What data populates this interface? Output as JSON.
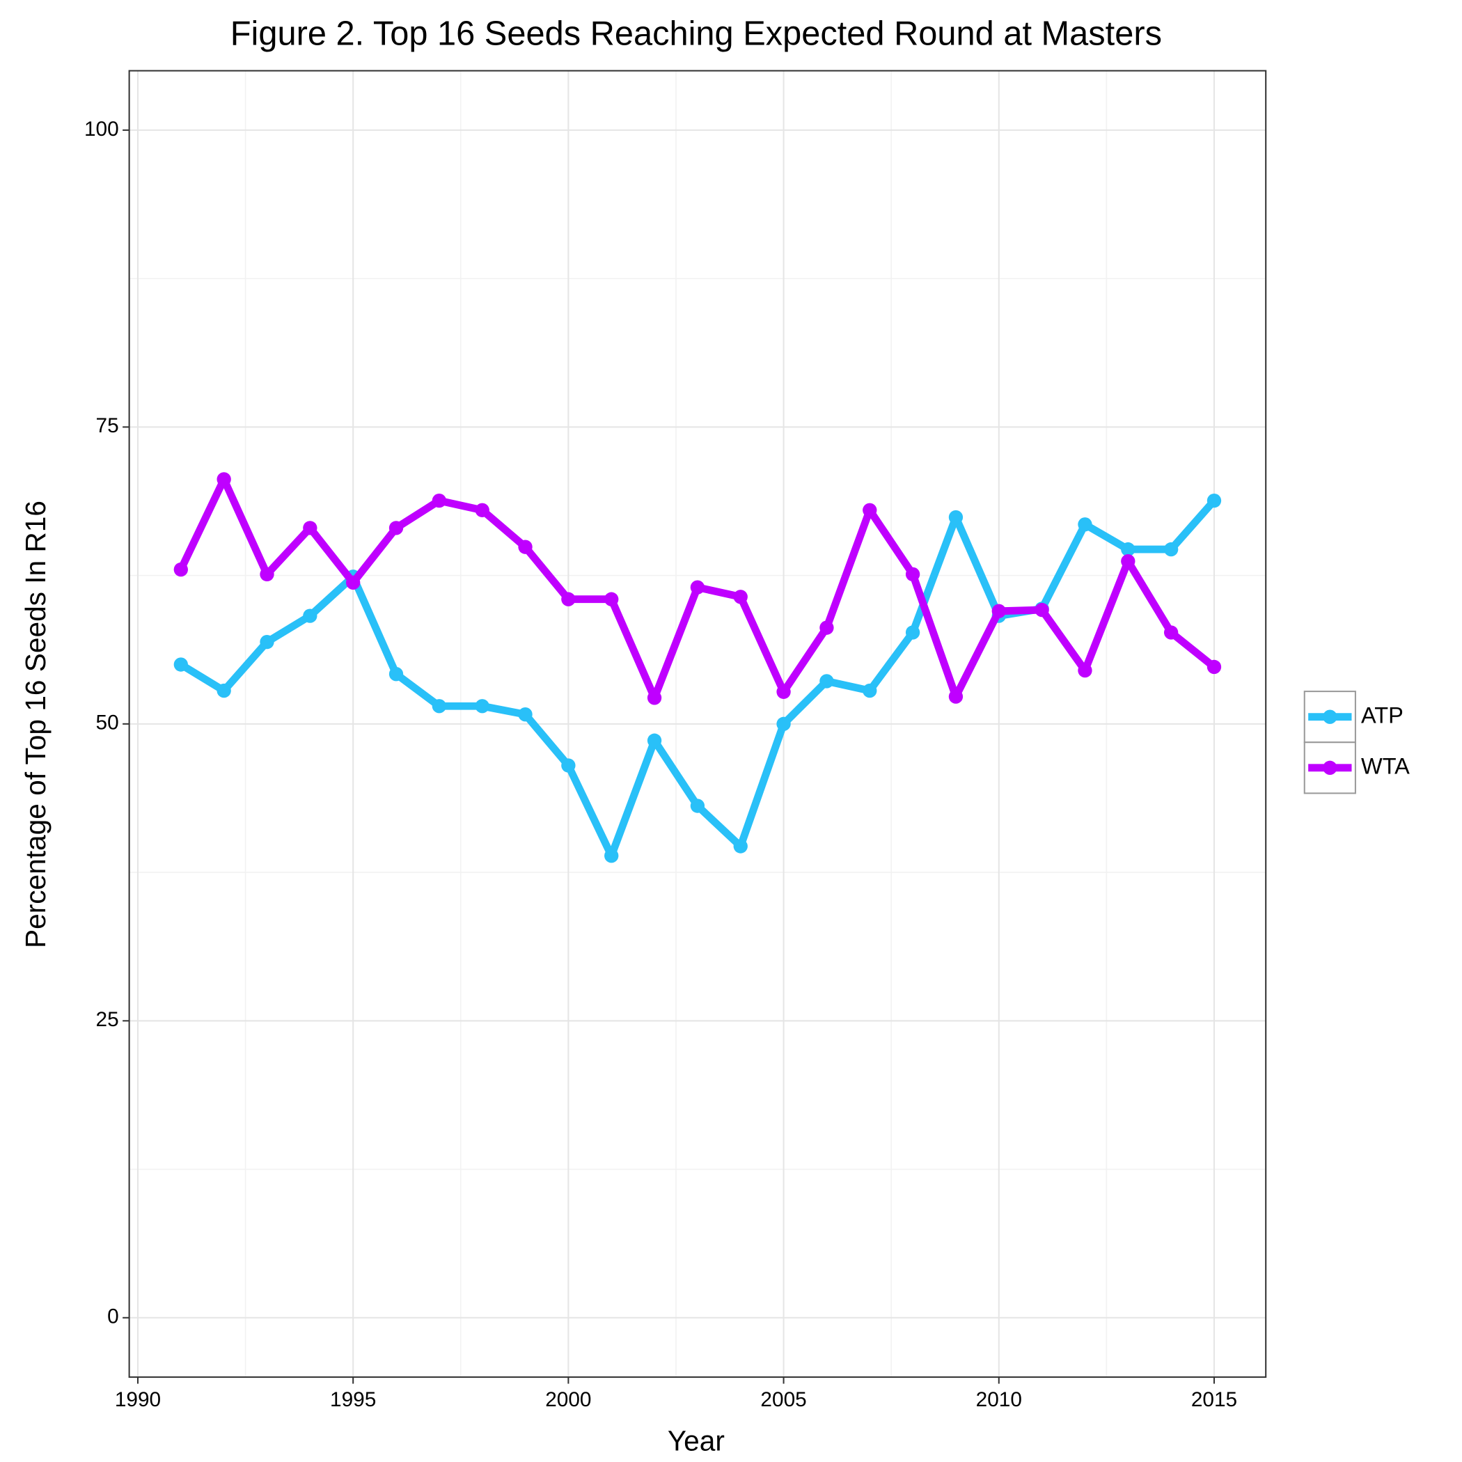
{
  "chart_data": {
    "type": "line",
    "title": "Figure 2. Top 16 Seeds Reaching Expected Round at Masters",
    "x_label": "Year",
    "y_label": "Percentage of Top 16 Seeds In R16",
    "x": [
      1991,
      1992,
      1993,
      1994,
      1995,
      1996,
      1997,
      1998,
      1999,
      2000,
      2001,
      2002,
      2003,
      2004,
      2005,
      2006,
      2007,
      2008,
      2009,
      2010,
      2011,
      2012,
      2013,
      2014,
      2015
    ],
    "series": [
      {
        "name": "ATP",
        "color": "#29c0f8",
        "values": [
          55.0,
          52.8,
          56.9,
          59.1,
          62.4,
          54.2,
          51.5,
          51.5,
          50.8,
          46.5,
          38.9,
          48.6,
          43.1,
          39.7,
          50.0,
          53.6,
          52.8,
          57.7,
          67.4,
          59.1,
          59.7,
          66.8,
          64.7,
          64.7,
          68.8
        ]
      },
      {
        "name": "WTA",
        "color": "#bf00ff",
        "values": [
          63.0,
          70.6,
          62.6,
          66.5,
          61.9,
          66.5,
          68.8,
          68.0,
          64.9,
          60.5,
          60.5,
          52.2,
          61.5,
          60.7,
          52.7,
          58.1,
          68.0,
          62.6,
          52.3,
          59.5,
          59.6,
          54.5,
          63.7,
          57.7,
          54.8
        ]
      }
    ],
    "xlim": [
      1989.8,
      2016.2
    ],
    "xticks": [
      1990,
      1995,
      2000,
      2005,
      2010,
      2015
    ],
    "ylim": [
      -5,
      105
    ],
    "yticks": [
      0,
      25,
      50,
      75,
      100
    ],
    "grid": true,
    "legend": "right"
  }
}
